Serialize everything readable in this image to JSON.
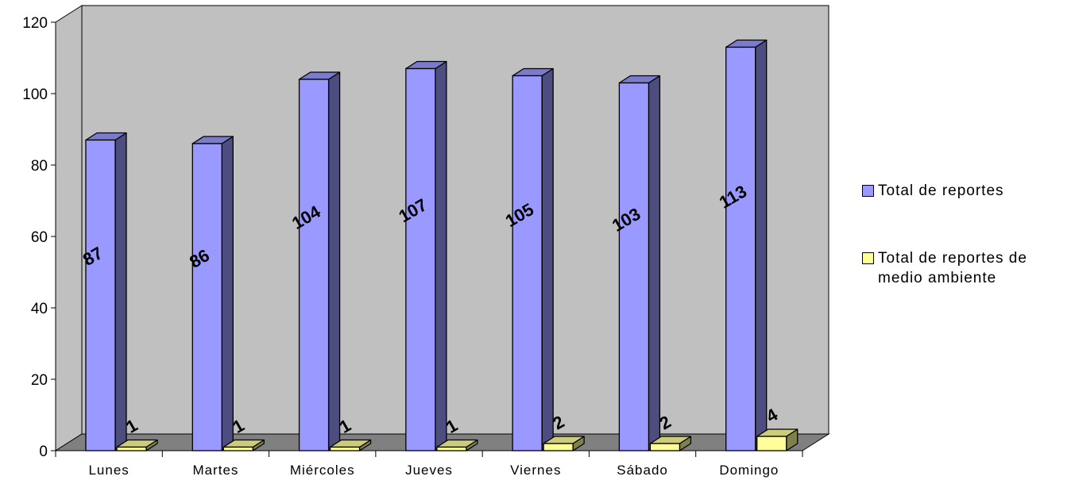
{
  "chart_data": {
    "type": "bar",
    "categories": [
      "Lunes",
      "Martes",
      "Miércoles",
      "Jueves",
      "Viernes",
      "Sábado",
      "Domingo"
    ],
    "series": [
      {
        "name": "Total de reportes",
        "values": [
          87,
          86,
          104,
          107,
          105,
          103,
          113
        ],
        "color": "#9999ff",
        "side_color": "#4d4d80",
        "top_color": "#7b7bcc"
      },
      {
        "name": "Total de reportes de medio ambiente",
        "values": [
          1,
          1,
          1,
          1,
          2,
          2,
          4
        ],
        "color": "#ffff99",
        "side_color": "#80804d",
        "top_color": "#cccc7b"
      }
    ],
    "y_ticks": [
      "0",
      "20",
      "40",
      "60",
      "80",
      "100",
      "120"
    ],
    "ylim": [
      0,
      120
    ],
    "grid": false,
    "legend": "right",
    "wall_color": "#c0c0c0",
    "floor_color": "#808080"
  }
}
